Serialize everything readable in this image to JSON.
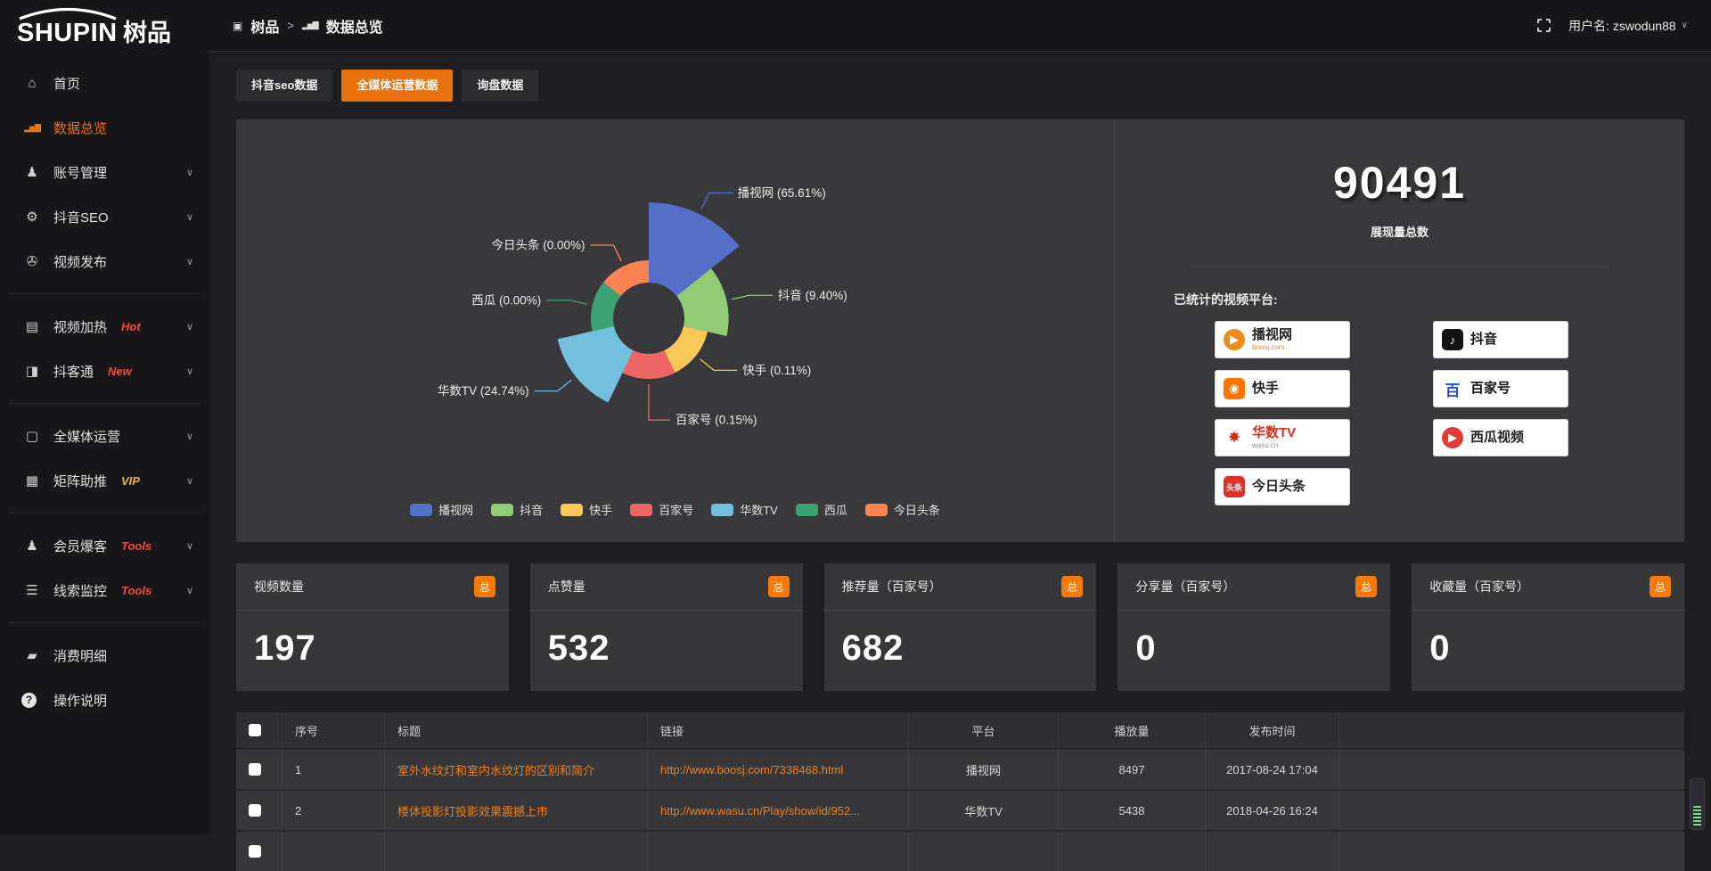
{
  "app": {
    "logo_text": "SHUPIN",
    "logo_cn": "树品"
  },
  "header": {
    "breadcrumb": [
      {
        "label": "树品"
      },
      {
        "label": "数据总览"
      }
    ],
    "separator": ">",
    "username": "用户名: zswodun88"
  },
  "sidebar": {
    "items": [
      {
        "label": "首页",
        "icon": "home-icon",
        "glyph": "⌂"
      },
      {
        "label": "数据总览",
        "icon": "bar-chart-icon",
        "glyph": "▂▅▇",
        "active": true
      },
      {
        "label": "账号管理",
        "icon": "user-icon",
        "glyph": "♟",
        "chevron": true
      },
      {
        "label": "抖音SEO",
        "icon": "gear-icon",
        "glyph": "⚙",
        "chevron": true
      },
      {
        "label": "视频发布",
        "icon": "video-icon",
        "glyph": "✇",
        "chevron": true
      },
      {
        "divider": true
      },
      {
        "label": "视频加热",
        "icon": "screen-icon",
        "glyph": "▤",
        "badge": "Hot",
        "badge_color": "#f5483b",
        "chevron": true
      },
      {
        "label": "抖客通",
        "icon": "chat-icon",
        "glyph": "◨",
        "badge": "New",
        "badge_color": "#f5483b",
        "chevron": true
      },
      {
        "divider": true
      },
      {
        "label": "全媒体运营",
        "icon": "monitor-icon",
        "glyph": "▢",
        "chevron": true
      },
      {
        "label": "矩阵助推",
        "icon": "grid-icon",
        "glyph": "▦",
        "badge": "VIP",
        "badge_color": "#e7b243",
        "chevron": true
      },
      {
        "divider": true
      },
      {
        "label": "会员爆客",
        "icon": "person-icon",
        "glyph": "♟",
        "badge": "Tools",
        "badge_color": "#f5483b",
        "chevron": true
      },
      {
        "label": "线索监控",
        "icon": "sliders-icon",
        "glyph": "☰",
        "badge": "Tools",
        "badge_color": "#f5483b",
        "chevron": true
      },
      {
        "divider": true
      },
      {
        "label": "消费明细",
        "icon": "wallet-icon",
        "glyph": "▰"
      },
      {
        "label": "操作说明",
        "icon": "question-icon",
        "glyph": "?",
        "icon_circle": true
      }
    ]
  },
  "tabs": [
    {
      "label": "抖音seo数据",
      "active": false
    },
    {
      "label": "全媒体运营数据",
      "active": true
    },
    {
      "label": "询盘数据",
      "active": false
    }
  ],
  "chart_data": {
    "type": "pie",
    "subtype": "nightingale-rose",
    "legend_position": "bottom",
    "unit": "percent",
    "items": [
      {
        "name": "播视网",
        "value": 65.61,
        "label": "播视网 (65.61%)",
        "color": "#5470c6"
      },
      {
        "name": "抖音",
        "value": 9.4,
        "label": "抖音 (9.40%)",
        "color": "#91cc75"
      },
      {
        "name": "快手",
        "value": 0.11,
        "label": "快手 (0.11%)",
        "color": "#fac858"
      },
      {
        "name": "百家号",
        "value": 0.15,
        "label": "百家号 (0.15%)",
        "color": "#ee6666"
      },
      {
        "name": "华数TV",
        "value": 24.74,
        "label": "华数TV (24.74%)",
        "color": "#73c0de"
      },
      {
        "name": "西瓜",
        "value": 0.0,
        "label": "西瓜 (0.00%)",
        "color": "#3ba272"
      },
      {
        "name": "今日头条",
        "value": 0.0,
        "label": "今日头条 (0.00%)",
        "color": "#fc8452"
      }
    ]
  },
  "summary": {
    "total_value": "90491",
    "total_label": "展现量总数",
    "platforms_label": "已统计的视频平台:",
    "platforms": [
      {
        "name": "播视网",
        "sub": "boosj.com",
        "icon": "boosj-logo",
        "glyph": "▶",
        "icon_bg": "#f08c1e",
        "icon_fg": "#ffffff",
        "shape": "circle",
        "name_color": "#222222",
        "sub_color": "#f08c1e"
      },
      {
        "name": "抖音",
        "sub": "",
        "icon": "douyin-logo",
        "glyph": "♪",
        "icon_bg": "#121212",
        "icon_fg": "#ffffff",
        "shape": "square",
        "name_color": "#111111",
        "sub_color": ""
      },
      {
        "name": "快手",
        "sub": "",
        "icon": "kuaishou-logo",
        "glyph": "◉",
        "icon_bg": "#ff7500",
        "icon_fg": "#ffffff",
        "shape": "square",
        "name_color": "#222222",
        "sub_color": ""
      },
      {
        "name": "百家号",
        "sub": "",
        "icon": "baijiahao-logo",
        "glyph": "百",
        "icon_bg": "#ffffff",
        "icon_fg": "#2850d8",
        "shape": "none",
        "name_color": "#111111",
        "sub_color": ""
      },
      {
        "name": "华数TV",
        "sub": "wasu.cn",
        "icon": "wasu-logo",
        "glyph": "✸",
        "icon_bg": "#ffffff",
        "icon_fg": "#d62c1a",
        "shape": "none",
        "name_color": "#d62c1a",
        "sub_color": "#999999"
      },
      {
        "name": "西瓜视频",
        "sub": "",
        "icon": "xigua-logo",
        "glyph": "▶",
        "icon_bg": "#e23c39",
        "icon_fg": "#ffffff",
        "shape": "circle",
        "name_color": "#222222",
        "sub_color": ""
      },
      {
        "name": "今日头条",
        "sub": "",
        "icon": "toutiao-logo",
        "glyph": "头条",
        "icon_bg": "#e0302a",
        "icon_fg": "#ffffff",
        "shape": "square",
        "name_color": "#222222",
        "sub_color": ""
      }
    ]
  },
  "stat_cards": [
    {
      "title": "视频数量",
      "badge": "总",
      "value": "197"
    },
    {
      "title": "点赞量",
      "badge": "总",
      "value": "532"
    },
    {
      "title": "推荐量（百家号）",
      "badge": "总",
      "value": "682"
    },
    {
      "title": "分享量（百家号）",
      "badge": "总",
      "value": "0"
    },
    {
      "title": "收藏量（百家号）",
      "badge": "总",
      "value": "0"
    }
  ],
  "table": {
    "columns": [
      "",
      "序号",
      "标题",
      "链接",
      "平台",
      "播放量",
      "发布时间",
      ""
    ],
    "rows": [
      {
        "seq": "1",
        "title": "室外水纹灯和室内水纹灯的区别和简介",
        "link": "http://www.boosj.com/7338468.html",
        "platform": "播视网",
        "plays": "8497",
        "time": "2017-08-24 17:04"
      },
      {
        "seq": "2",
        "title": "楼体投影灯投影效果震撼上市",
        "link": "http://www.wasu.cn/Play/show/id/952...",
        "platform": "华数TV",
        "plays": "5438",
        "time": "2018-04-26 16:24"
      },
      {
        "seq": "",
        "title": "",
        "link": "",
        "platform": "",
        "plays": "",
        "time": ""
      }
    ]
  },
  "colors": {
    "accent_orange": "#e8710d",
    "panel_bg": "#39393c",
    "sidebar_bg": "#17171a"
  }
}
